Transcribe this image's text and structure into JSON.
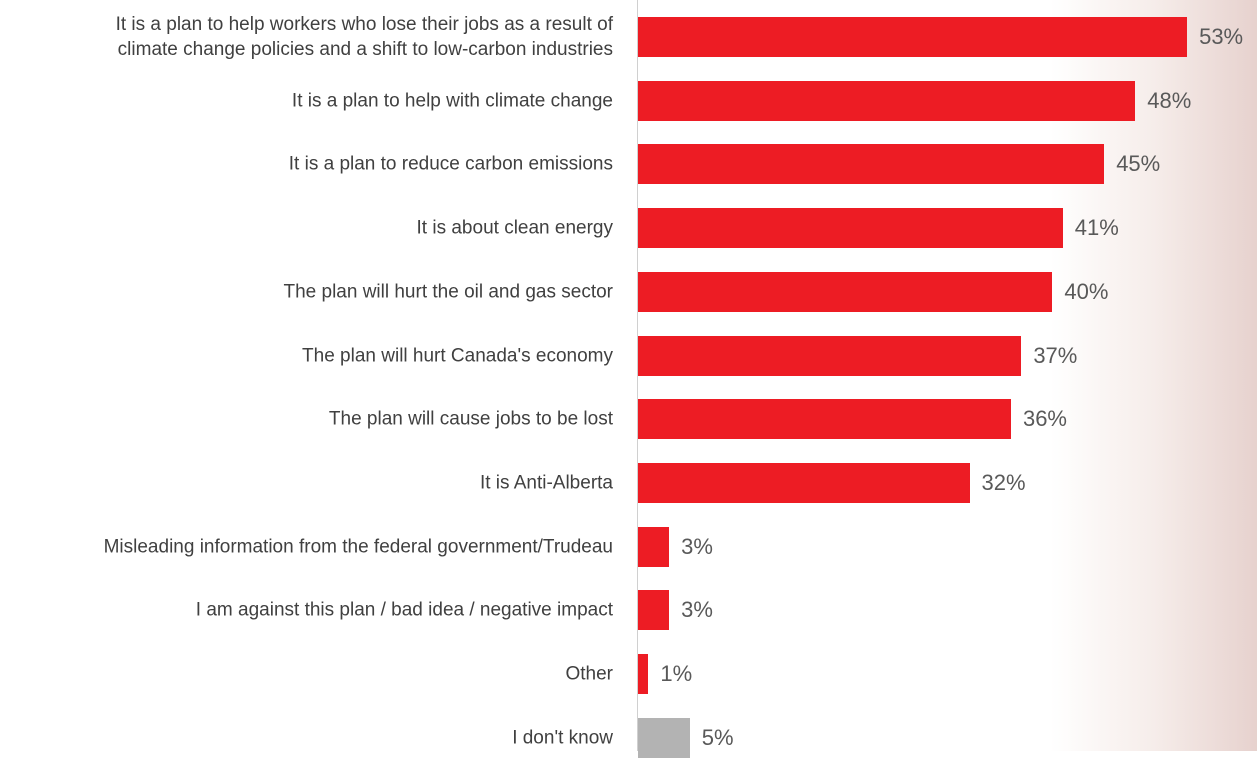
{
  "chart_data": {
    "type": "bar",
    "orientation": "horizontal",
    "categories": [
      "It is a plan to help workers who lose their jobs as a result of\nclimate change policies and a shift to low-carbon industries",
      "It is a plan to help with climate change",
      "It is a plan to reduce carbon emissions",
      "It is about clean energy",
      "The plan will hurt the oil and gas sector",
      "The plan will hurt Canada's economy",
      "The plan will cause jobs to be lost",
      "It is Anti-Alberta",
      "Misleading information from the federal government/Trudeau",
      "I am against this plan / bad idea / negative impact",
      "Other",
      "I don't know"
    ],
    "values": [
      53,
      48,
      45,
      41,
      40,
      37,
      36,
      32,
      3,
      3,
      1,
      5
    ],
    "value_labels": [
      "53%",
      "48%",
      "45%",
      "41%",
      "40%",
      "37%",
      "36%",
      "32%",
      "3%",
      "3%",
      "1%",
      "5%"
    ],
    "colors": [
      "#ed1c24",
      "#ed1c24",
      "#ed1c24",
      "#ed1c24",
      "#ed1c24",
      "#ed1c24",
      "#ed1c24",
      "#ed1c24",
      "#ed1c24",
      "#ed1c24",
      "#ed1c24",
      "#b3b3b3"
    ]
  }
}
